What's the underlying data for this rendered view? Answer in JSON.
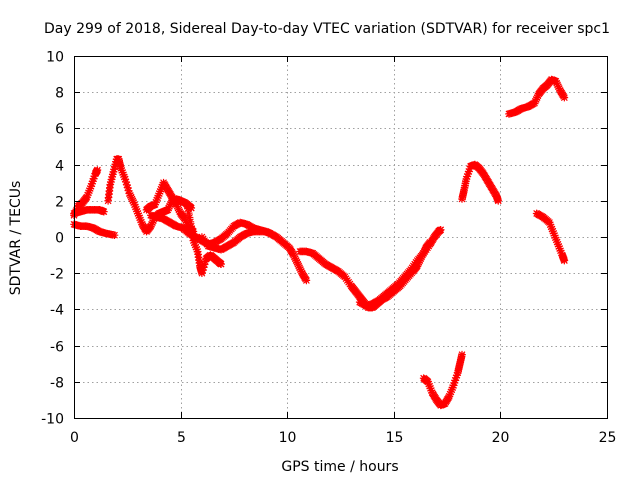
{
  "chart_data": {
    "type": "scatter",
    "title": "Day 299 of 2018, Sidereal Day-to-day VTEC variation (SDTVAR) for receiver spc1",
    "xlabel": "GPS time / hours",
    "ylabel": "SDTVAR / TECUs",
    "xlim": [
      0,
      25
    ],
    "ylim": [
      -10,
      10
    ],
    "x_ticks": [
      0,
      5,
      10,
      15,
      20,
      25
    ],
    "y_ticks": [
      -10,
      -8,
      -6,
      -4,
      -2,
      0,
      2,
      4,
      6,
      8,
      10
    ],
    "grid": true,
    "marker": "plus-cross",
    "color": "#ff0000",
    "series": [
      {
        "name": "seg1",
        "points": [
          [
            0.0,
            1.2
          ],
          [
            0.2,
            1.7
          ],
          [
            0.4,
            1.9
          ],
          [
            0.6,
            2.2
          ],
          [
            0.8,
            2.8
          ],
          [
            1.0,
            3.5
          ],
          [
            1.1,
            3.7
          ]
        ]
      },
      {
        "name": "seg2",
        "points": [
          [
            0.0,
            1.3
          ],
          [
            0.3,
            1.4
          ],
          [
            0.6,
            1.5
          ],
          [
            0.9,
            1.5
          ],
          [
            1.2,
            1.5
          ],
          [
            1.4,
            1.4
          ]
        ]
      },
      {
        "name": "seg3",
        "points": [
          [
            0.0,
            0.7
          ],
          [
            0.3,
            0.6
          ],
          [
            0.6,
            0.6
          ],
          [
            0.9,
            0.5
          ],
          [
            1.2,
            0.3
          ],
          [
            1.5,
            0.2
          ],
          [
            1.9,
            0.1
          ]
        ]
      },
      {
        "name": "seg4",
        "points": [
          [
            1.6,
            2.0
          ],
          [
            1.7,
            2.9
          ],
          [
            1.85,
            3.6
          ],
          [
            2.0,
            4.3
          ],
          [
            2.1,
            4.3
          ],
          [
            2.2,
            3.8
          ],
          [
            2.4,
            3.2
          ],
          [
            2.6,
            2.4
          ],
          [
            2.8,
            1.9
          ],
          [
            3.0,
            1.3
          ],
          [
            3.2,
            0.7
          ],
          [
            3.4,
            0.3
          ],
          [
            3.6,
            0.6
          ],
          [
            3.8,
            1.1
          ],
          [
            4.0,
            1.3
          ],
          [
            4.2,
            1.4
          ],
          [
            4.4,
            1.5
          ],
          [
            4.6,
            2.0
          ],
          [
            4.8,
            2.1
          ],
          [
            5.0,
            2.0
          ],
          [
            5.2,
            1.9
          ],
          [
            5.4,
            1.7
          ],
          [
            5.5,
            1.6
          ]
        ]
      },
      {
        "name": "seg5",
        "points": [
          [
            3.4,
            1.5
          ],
          [
            3.6,
            1.7
          ],
          [
            3.8,
            1.8
          ],
          [
            4.0,
            2.4
          ],
          [
            4.2,
            3.0
          ],
          [
            4.4,
            2.6
          ],
          [
            4.6,
            2.2
          ],
          [
            4.8,
            1.8
          ],
          [
            5.0,
            1.3
          ],
          [
            5.2,
            1.0
          ],
          [
            5.4,
            0.5
          ],
          [
            5.6,
            0.3
          ]
        ]
      },
      {
        "name": "seg6",
        "points": [
          [
            3.6,
            1.2
          ],
          [
            3.9,
            1.1
          ],
          [
            4.2,
            1.0
          ],
          [
            4.5,
            0.8
          ],
          [
            4.8,
            0.6
          ],
          [
            5.1,
            0.5
          ],
          [
            5.4,
            0.2
          ],
          [
            5.7,
            0.0
          ],
          [
            6.0,
            -0.2
          ],
          [
            6.3,
            -0.4
          ],
          [
            6.6,
            -0.3
          ],
          [
            6.9,
            -0.1
          ],
          [
            7.2,
            0.2
          ],
          [
            7.5,
            0.6
          ],
          [
            7.8,
            0.8
          ],
          [
            8.1,
            0.7
          ],
          [
            8.4,
            0.5
          ],
          [
            8.7,
            0.4
          ],
          [
            9.0,
            0.3
          ]
        ]
      },
      {
        "name": "seg7",
        "points": [
          [
            5.3,
            1.8
          ],
          [
            5.5,
            0.6
          ],
          [
            5.6,
            -0.2
          ],
          [
            5.8,
            -0.8
          ],
          [
            5.9,
            -1.6
          ],
          [
            6.0,
            -2.0
          ],
          [
            6.2,
            -1.2
          ],
          [
            6.4,
            -1.0
          ],
          [
            6.6,
            -1.2
          ],
          [
            6.8,
            -1.4
          ],
          [
            6.9,
            -1.5
          ]
        ]
      },
      {
        "name": "seg8",
        "points": [
          [
            6.0,
            0.0
          ],
          [
            6.3,
            -0.5
          ],
          [
            6.6,
            -0.6
          ],
          [
            6.9,
            -0.7
          ],
          [
            7.2,
            -0.5
          ],
          [
            7.5,
            -0.3
          ],
          [
            7.8,
            0.0
          ],
          [
            8.1,
            0.2
          ],
          [
            8.4,
            0.3
          ],
          [
            8.7,
            0.3
          ],
          [
            9.0,
            0.3
          ],
          [
            9.2,
            0.2
          ],
          [
            9.5,
            0.0
          ],
          [
            9.8,
            -0.3
          ],
          [
            10.1,
            -0.6
          ],
          [
            10.3,
            -1.0
          ],
          [
            10.5,
            -1.5
          ],
          [
            10.7,
            -2.0
          ],
          [
            10.9,
            -2.4
          ]
        ]
      },
      {
        "name": "seg9",
        "points": [
          [
            10.6,
            -0.8
          ],
          [
            10.9,
            -0.8
          ],
          [
            11.2,
            -0.9
          ],
          [
            11.5,
            -1.2
          ],
          [
            11.8,
            -1.5
          ],
          [
            12.1,
            -1.7
          ],
          [
            12.4,
            -1.9
          ],
          [
            12.7,
            -2.2
          ],
          [
            13.0,
            -2.7
          ],
          [
            13.2,
            -3.0
          ],
          [
            13.4,
            -3.3
          ],
          [
            13.6,
            -3.6
          ],
          [
            13.8,
            -3.9
          ],
          [
            14.0,
            -3.9
          ],
          [
            14.2,
            -3.7
          ],
          [
            14.4,
            -3.5
          ],
          [
            14.7,
            -3.3
          ],
          [
            15.0,
            -3.0
          ],
          [
            15.3,
            -2.7
          ],
          [
            15.6,
            -2.3
          ],
          [
            15.9,
            -1.9
          ],
          [
            16.1,
            -1.6
          ],
          [
            16.3,
            -1.1
          ],
          [
            16.5,
            -0.6
          ],
          [
            16.7,
            -0.3
          ]
        ]
      },
      {
        "name": "seg10",
        "points": [
          [
            13.4,
            -3.6
          ],
          [
            13.7,
            -3.8
          ],
          [
            14.0,
            -3.7
          ],
          [
            14.3,
            -3.5
          ],
          [
            14.6,
            -3.2
          ],
          [
            14.9,
            -2.9
          ],
          [
            15.2,
            -2.6
          ],
          [
            15.5,
            -2.2
          ],
          [
            15.8,
            -1.8
          ],
          [
            16.1,
            -1.3
          ],
          [
            16.4,
            -0.9
          ],
          [
            16.7,
            -0.4
          ],
          [
            16.9,
            0.0
          ],
          [
            17.1,
            0.3
          ],
          [
            17.2,
            0.4
          ]
        ]
      },
      {
        "name": "seg11",
        "points": [
          [
            16.4,
            -7.8
          ],
          [
            16.6,
            -8.0
          ],
          [
            16.8,
            -8.6
          ],
          [
            17.0,
            -9.0
          ],
          [
            17.2,
            -9.3
          ],
          [
            17.4,
            -9.2
          ],
          [
            17.6,
            -8.8
          ],
          [
            17.8,
            -8.2
          ],
          [
            18.0,
            -7.5
          ],
          [
            18.1,
            -7.0
          ],
          [
            18.2,
            -6.5
          ]
        ]
      },
      {
        "name": "seg12",
        "points": [
          [
            18.2,
            2.1
          ],
          [
            18.3,
            2.6
          ],
          [
            18.4,
            3.2
          ],
          [
            18.6,
            3.9
          ],
          [
            18.8,
            4.0
          ],
          [
            19.0,
            3.8
          ],
          [
            19.2,
            3.5
          ],
          [
            19.4,
            3.1
          ],
          [
            19.6,
            2.7
          ],
          [
            19.8,
            2.3
          ],
          [
            19.9,
            2.0
          ]
        ]
      },
      {
        "name": "seg13",
        "points": [
          [
            20.4,
            6.8
          ],
          [
            20.7,
            6.9
          ],
          [
            21.0,
            7.1
          ],
          [
            21.3,
            7.2
          ],
          [
            21.6,
            7.4
          ],
          [
            21.8,
            7.9
          ],
          [
            22.0,
            8.2
          ],
          [
            22.2,
            8.4
          ],
          [
            22.4,
            8.7
          ],
          [
            22.6,
            8.6
          ],
          [
            22.8,
            8.1
          ],
          [
            23.0,
            7.7
          ]
        ]
      },
      {
        "name": "seg14",
        "points": [
          [
            21.7,
            1.3
          ],
          [
            22.0,
            1.1
          ],
          [
            22.3,
            0.8
          ],
          [
            22.5,
            0.2
          ],
          [
            22.7,
            -0.4
          ],
          [
            22.9,
            -1.0
          ],
          [
            23.0,
            -1.3
          ]
        ]
      }
    ]
  }
}
